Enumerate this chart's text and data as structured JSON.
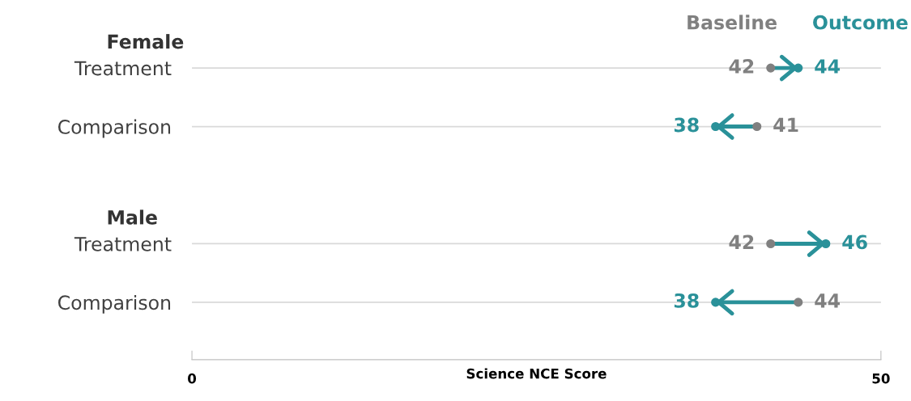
{
  "chart_data": {
    "type": "scatter",
    "marker": "circle",
    "orientation": "horizontal",
    "categories": [
      "Treatment",
      "Comparison",
      null,
      "Treatment",
      "Comparison"
    ],
    "series": [
      {
        "name": "Baseline",
        "color": "#808080",
        "values": [
          42,
          41,
          null,
          42,
          44
        ]
      },
      {
        "name": "Outcome",
        "color": "#2a9199",
        "values": [
          44,
          38,
          null,
          46,
          38
        ]
      }
    ],
    "xlabel": "Science NCE Score",
    "xlim": [
      0,
      50
    ],
    "xticks": [
      0,
      50
    ],
    "annotations": [
      "Female",
      "Male"
    ],
    "data_labels": true,
    "grid": "y"
  }
}
